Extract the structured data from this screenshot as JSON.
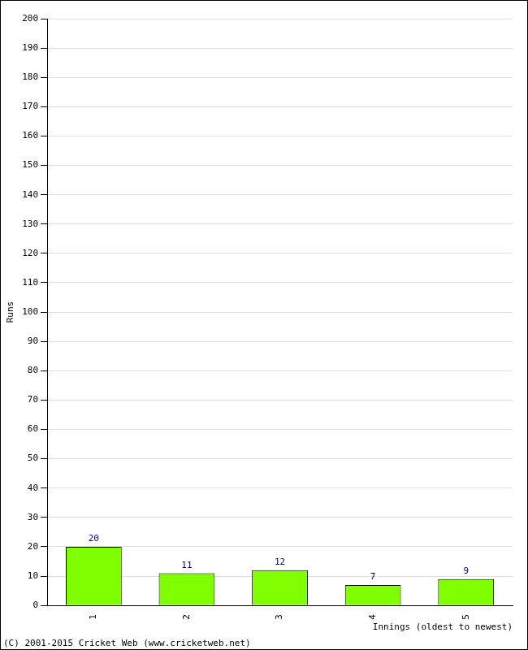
{
  "chart_data": {
    "type": "bar",
    "categories": [
      "1",
      "2",
      "3",
      "4",
      "5"
    ],
    "values": [
      20,
      11,
      12,
      7,
      9
    ],
    "color": "#80ff00",
    "x_label": "Innings (oldest to newest)",
    "y_label": "Runs",
    "annotations": [
      "(C) 2001-2015 Cricket Web (www.cricketweb.net)"
    ],
    "ylim": [
      0,
      200
    ],
    "yticks": [
      0,
      10,
      20,
      30,
      40,
      50,
      60,
      70,
      80,
      90,
      100,
      110,
      120,
      130,
      140,
      150,
      160,
      170,
      180,
      190,
      200
    ],
    "grid": true,
    "data_labels": true
  }
}
